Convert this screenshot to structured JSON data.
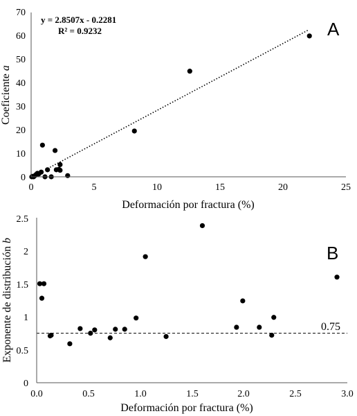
{
  "chart_data": [
    {
      "type": "scatter",
      "panel_label": "A",
      "xlabel": "Deformación por fractura (%)",
      "ylabel_prefix": "Coeficiente ",
      "ylabel_var": "a",
      "xlim": [
        0,
        25
      ],
      "ylim": [
        0,
        70
      ],
      "x_ticks": [
        0,
        5,
        10,
        15,
        20,
        25
      ],
      "y_ticks": [
        0,
        10,
        20,
        30,
        40,
        50,
        60,
        70
      ],
      "x_tick_labels": [
        "0",
        "5",
        "10",
        "15",
        "20",
        "25"
      ],
      "y_tick_labels": [
        "0",
        "10",
        "20",
        "30",
        "40",
        "50",
        "60",
        "70"
      ],
      "grid": false,
      "trendline": {
        "style": "dotted",
        "slope": 2.8507,
        "intercept": -0.2281,
        "x_range": [
          1.5,
          22
        ],
        "equation": "y = 2.8507x - 0.2281",
        "r2_text": "R² = 0.9232"
      },
      "points": [
        {
          "x": 0.05,
          "y": 0.0
        },
        {
          "x": 0.1,
          "y": 0.2
        },
        {
          "x": 0.2,
          "y": 0.0
        },
        {
          "x": 0.3,
          "y": 0.5
        },
        {
          "x": 0.4,
          "y": 1.0
        },
        {
          "x": 0.5,
          "y": 1.5
        },
        {
          "x": 0.6,
          "y": 1.2
        },
        {
          "x": 0.8,
          "y": 2.0
        },
        {
          "x": 0.9,
          "y": 13.5
        },
        {
          "x": 1.1,
          "y": 0.0
        },
        {
          "x": 1.3,
          "y": 3.0
        },
        {
          "x": 1.6,
          "y": 0.0
        },
        {
          "x": 1.9,
          "y": 11.2
        },
        {
          "x": 2.0,
          "y": 3.0
        },
        {
          "x": 2.2,
          "y": 3.2
        },
        {
          "x": 2.3,
          "y": 5.2
        },
        {
          "x": 2.3,
          "y": 2.8
        },
        {
          "x": 2.9,
          "y": 0.5
        },
        {
          "x": 8.2,
          "y": 19.5
        },
        {
          "x": 12.6,
          "y": 45.0
        },
        {
          "x": 22.1,
          "y": 60.0
        }
      ]
    },
    {
      "type": "scatter",
      "panel_label": "B",
      "xlabel": "Deformación por fractura (%)",
      "ylabel_prefix": "Exponente de distribución ",
      "ylabel_var": "b",
      "xlim": [
        0,
        3.0
      ],
      "ylim": [
        0,
        2.5
      ],
      "x_ticks": [
        0,
        0.5,
        1,
        1.5,
        2,
        2.5,
        3
      ],
      "y_ticks": [
        0,
        0.5,
        1,
        1.5,
        2,
        2.5
      ],
      "x_tick_labels": [
        "0.0",
        "0.5",
        "1.0",
        "1.5",
        "2.0",
        "2.5",
        "3.0"
      ],
      "y_tick_labels": [
        "0",
        "0.5",
        "1",
        "1.5",
        "2",
        "2.5"
      ],
      "grid": false,
      "reference_line": {
        "y": 0.75,
        "style": "dashed",
        "label": "0.75"
      },
      "points": [
        {
          "x": 0.03,
          "y": 1.5
        },
        {
          "x": 0.05,
          "y": 1.28
        },
        {
          "x": 0.07,
          "y": 1.5
        },
        {
          "x": 0.13,
          "y": 0.71
        },
        {
          "x": 0.14,
          "y": 0.72
        },
        {
          "x": 0.32,
          "y": 0.59
        },
        {
          "x": 0.42,
          "y": 0.82
        },
        {
          "x": 0.52,
          "y": 0.75
        },
        {
          "x": 0.56,
          "y": 0.8
        },
        {
          "x": 0.71,
          "y": 0.68
        },
        {
          "x": 0.76,
          "y": 0.81
        },
        {
          "x": 0.85,
          "y": 0.81
        },
        {
          "x": 0.96,
          "y": 0.98
        },
        {
          "x": 1.05,
          "y": 1.91
        },
        {
          "x": 1.25,
          "y": 0.7
        },
        {
          "x": 1.6,
          "y": 2.38
        },
        {
          "x": 1.93,
          "y": 0.84
        },
        {
          "x": 1.99,
          "y": 1.24
        },
        {
          "x": 2.15,
          "y": 0.84
        },
        {
          "x": 2.27,
          "y": 0.72
        },
        {
          "x": 2.29,
          "y": 0.99
        },
        {
          "x": 2.9,
          "y": 1.6
        }
      ]
    }
  ]
}
